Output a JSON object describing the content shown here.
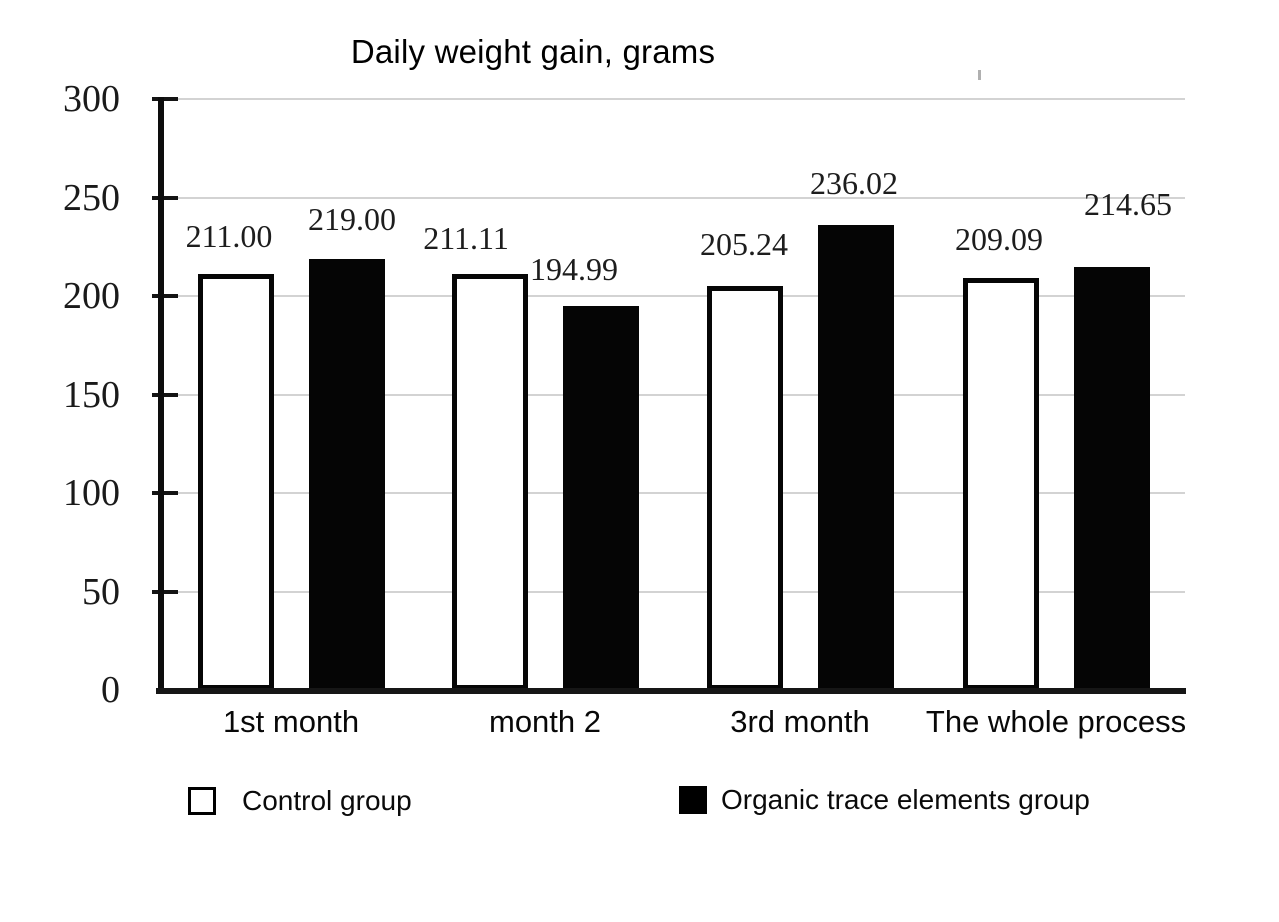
{
  "chart_data": {
    "type": "bar",
    "title": "Daily weight gain, grams",
    "categories": [
      "1st month",
      "month 2",
      "3rd month",
      "The whole process"
    ],
    "series": [
      {
        "name": "Control group",
        "fill": "#ffffff",
        "border": "#000000",
        "values": [
          211.0,
          211.11,
          205.24,
          209.09
        ],
        "value_labels": [
          "211.00",
          "211.11",
          "205.24",
          "209.09"
        ]
      },
      {
        "name": "Organic trace elements group",
        "fill": "#000000",
        "border": "#000000",
        "values": [
          219.0,
          194.99,
          236.02,
          214.65
        ],
        "value_labels": [
          "219.00",
          "194.99",
          "236.02",
          "214.65"
        ]
      }
    ],
    "y_axis": {
      "min": 0,
      "max": 300,
      "tick_interval": 50,
      "tick_labels": [
        "0",
        "50",
        "100",
        "150",
        "200",
        "250",
        "300"
      ]
    },
    "grid": true,
    "legend_position": "bottom",
    "colors": {
      "bar_white_fill": "#ffffff",
      "bar_black_fill": "#050505",
      "bar_border": "#000000",
      "gridline": "#d3d3d3",
      "axis": "#0d0d0d",
      "value_label_text": "#1d1d1d"
    }
  }
}
